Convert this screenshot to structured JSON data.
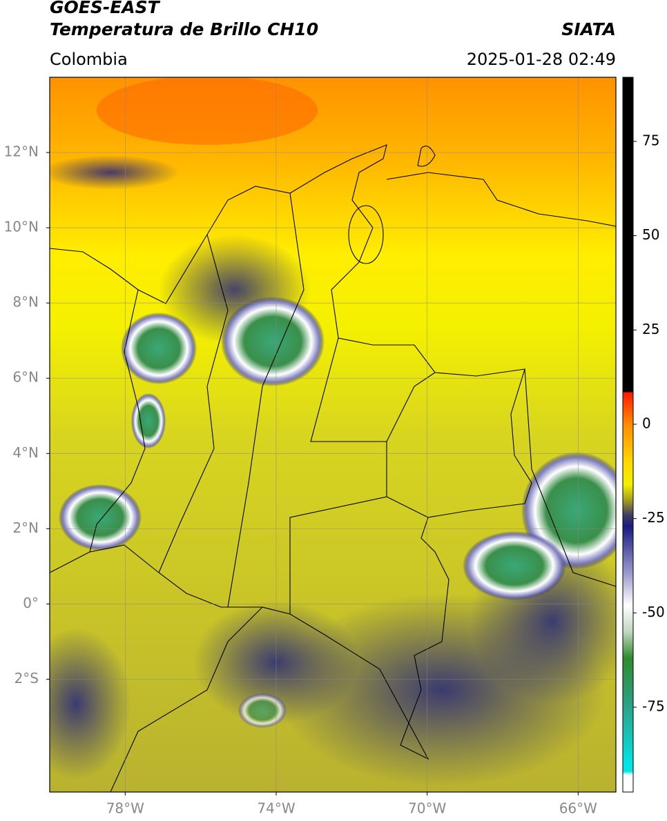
{
  "header": {
    "title": "GOES-EAST",
    "subtitle": "Temperatura de Brillo CH10",
    "source": "SIATA",
    "region": "Colombia",
    "datetime": "2025-01-28 02:49"
  },
  "map": {
    "xlim": [
      -80,
      -65
    ],
    "ylim": [
      -5,
      14
    ],
    "xticks": [
      {
        "value": -78,
        "label": "78°W"
      },
      {
        "value": -74,
        "label": "74°W"
      },
      {
        "value": -70,
        "label": "70°W"
      },
      {
        "value": -66,
        "label": "66°W"
      }
    ],
    "yticks": [
      {
        "value": 12,
        "label": "12°N"
      },
      {
        "value": 10,
        "label": "10°N"
      },
      {
        "value": 8,
        "label": "8°N"
      },
      {
        "value": 6,
        "label": "6°N"
      },
      {
        "value": 4,
        "label": "4°N"
      },
      {
        "value": 2,
        "label": "2°N"
      },
      {
        "value": 0,
        "label": "0°"
      },
      {
        "value": -2,
        "label": "2°S"
      }
    ],
    "grid": true
  },
  "colorbar": {
    "lim": [
      -97.5,
      92
    ],
    "ticks": [
      75,
      50,
      25,
      0,
      -25,
      -50,
      -75
    ],
    "colormap": [
      [
        92,
        "#000000"
      ],
      [
        8.6,
        "#000000"
      ],
      [
        8.4,
        "#ff1a00"
      ],
      [
        0,
        "#ff8c00"
      ],
      [
        -10,
        "#ffd800"
      ],
      [
        -16,
        "#f2f000"
      ],
      [
        -20,
        "#a8a020"
      ],
      [
        -24,
        "#404060"
      ],
      [
        -27,
        "#1a1a80"
      ],
      [
        -40,
        "#a0a0d0"
      ],
      [
        -48,
        "#ffffff"
      ],
      [
        -55,
        "#c0d8c0"
      ],
      [
        -62,
        "#2e8b2e"
      ],
      [
        -75,
        "#2aa38a"
      ],
      [
        -90,
        "#00e5e5"
      ],
      [
        -92,
        "#00e5e5"
      ],
      [
        -93,
        "#ffffff"
      ],
      [
        -97.5,
        "#ffffff"
      ]
    ]
  }
}
